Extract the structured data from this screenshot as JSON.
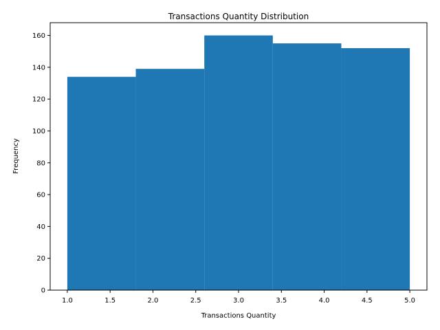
{
  "chart_data": {
    "type": "bar",
    "title": "Transactions Quantity Distribution",
    "xlabel": "Transactions Quantity",
    "ylabel": "Frequency",
    "bins": [
      {
        "x0": 1.0,
        "x1": 1.8,
        "value": 134
      },
      {
        "x0": 1.8,
        "x1": 2.6,
        "value": 139
      },
      {
        "x0": 2.6,
        "x1": 3.4,
        "value": 160
      },
      {
        "x0": 3.4,
        "x1": 4.2,
        "value": 155
      },
      {
        "x0": 4.2,
        "x1": 5.0,
        "value": 152
      }
    ],
    "xlim": [
      0.8,
      5.2
    ],
    "ylim": [
      0,
      168
    ],
    "xticks": [
      "1.0",
      "1.5",
      "2.0",
      "2.5",
      "3.0",
      "3.5",
      "4.0",
      "4.5",
      "5.0"
    ],
    "yticks": [
      "0",
      "20",
      "40",
      "60",
      "80",
      "100",
      "120",
      "140",
      "160"
    ],
    "bar_color": "#1f77b4",
    "grid": false,
    "legend": "none"
  }
}
